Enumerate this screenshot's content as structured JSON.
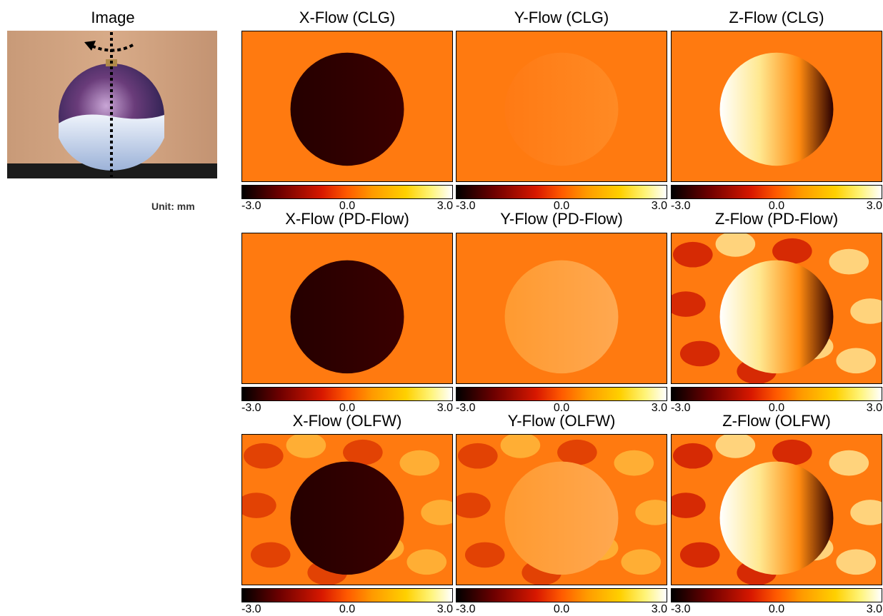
{
  "image_title": "Image",
  "unit_label": "Unit: mm",
  "colorbar": {
    "min_label": "-3.0",
    "mid_label": "0.0",
    "max_label": "3.0"
  },
  "panels": [
    {
      "title": "X-Flow (CLG)"
    },
    {
      "title": "Y-Flow (CLG)"
    },
    {
      "title": "Z-Flow (CLG)"
    },
    {
      "title": "X-Flow (PD-Flow)"
    },
    {
      "title": "Y-Flow (PD-Flow)"
    },
    {
      "title": "Z-Flow (PD-Flow)"
    },
    {
      "title": "X-Flow (OLFW)"
    },
    {
      "title": "Y-Flow (OLFW)"
    },
    {
      "title": "Z-Flow (OLFW)"
    }
  ],
  "colors": {
    "background_orange": "#ff7a10",
    "dark": "#1a0000",
    "bright": "#fff6c0"
  }
}
